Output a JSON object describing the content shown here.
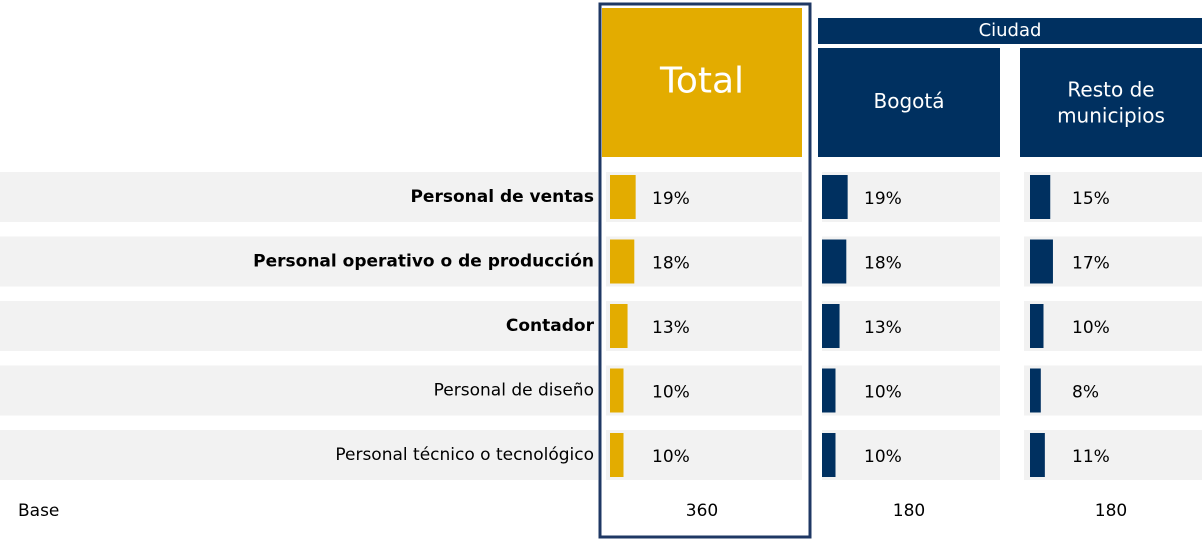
{
  "chart_data": {
    "type": "bar",
    "group_header": "Ciudad",
    "categories": [
      "Personal de ventas",
      "Personal operativo o de producción",
      "Contador",
      "Personal de diseño",
      "Personal técnico o tecnológico"
    ],
    "bold": [
      true,
      true,
      true,
      false,
      false
    ],
    "base_label": "Base",
    "series": [
      {
        "name": "Total",
        "color": "#e3ac00",
        "header_color": "#e3ac00",
        "values": [
          19,
          18,
          13,
          10,
          10
        ],
        "value_labels": [
          "19%",
          "18%",
          "13%",
          "10%",
          "10%"
        ],
        "base": 360
      },
      {
        "name": "Bogotá",
        "color": "#003060",
        "header_color": "#003060",
        "values": [
          19,
          18,
          13,
          10,
          10
        ],
        "value_labels": [
          "19%",
          "18%",
          "13%",
          "10%",
          "10%"
        ],
        "base": 180
      },
      {
        "name": "Resto de municipios",
        "color": "#003060",
        "header_color": "#003060",
        "values": [
          15,
          17,
          10,
          8,
          11
        ],
        "value_labels": [
          "15%",
          "17%",
          "10%",
          "8%",
          "11%"
        ],
        "base": 180
      }
    ]
  }
}
